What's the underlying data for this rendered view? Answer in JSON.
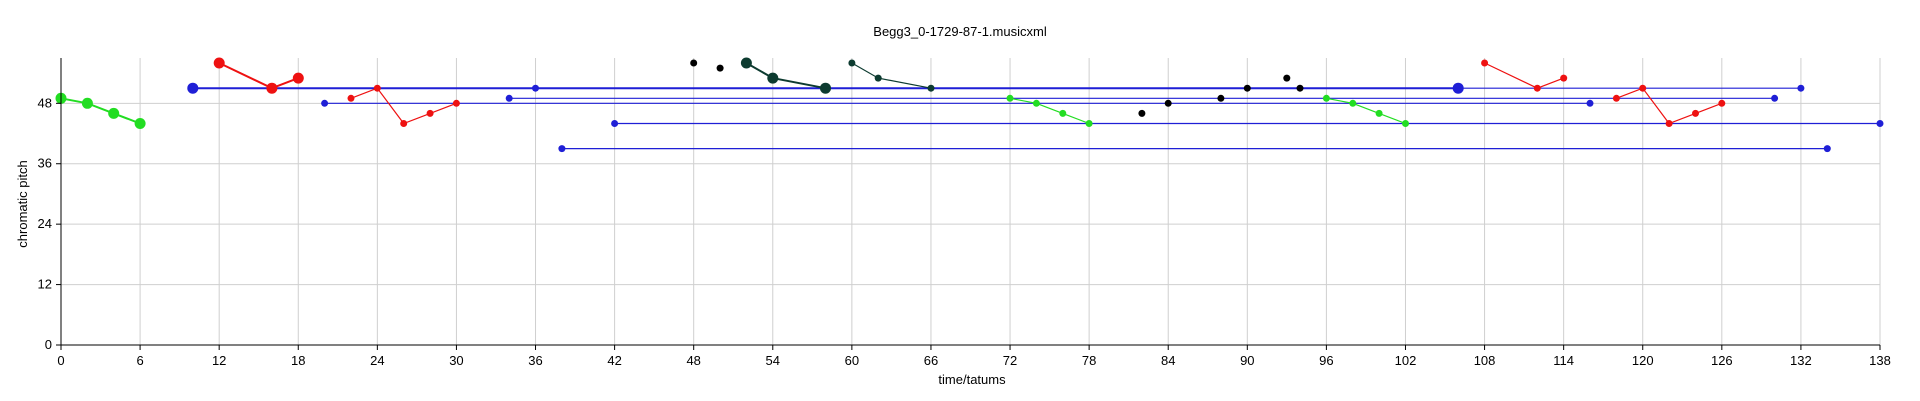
{
  "chart_data": {
    "type": "scatter",
    "title": "Begg3_0-1729-87-1.musicxml",
    "xlabel": "time/tatums",
    "ylabel": "chromatic pitch",
    "xlim": [
      0,
      138
    ],
    "ylim": [
      0,
      57
    ],
    "xticks": [
      0,
      6,
      12,
      18,
      24,
      30,
      36,
      42,
      48,
      54,
      60,
      66,
      72,
      78,
      84,
      90,
      96,
      102,
      108,
      114,
      120,
      126,
      132,
      138
    ],
    "yticks": [
      0,
      12,
      24,
      36,
      48
    ],
    "grid": true,
    "colors": {
      "blue": "#1f1fd6",
      "red": "#ee1111",
      "green": "#22dd22",
      "dark": "#0d3b30",
      "black": "#000000",
      "grid": "#cfcfcf"
    },
    "series": [
      {
        "color": "blue",
        "kind": "sustain",
        "size": "large",
        "points": [
          [
            10,
            51
          ],
          [
            106,
            51
          ]
        ]
      },
      {
        "color": "blue",
        "kind": "sustain",
        "size": "small",
        "points": [
          [
            20,
            48
          ],
          [
            116,
            48
          ]
        ]
      },
      {
        "color": "blue",
        "kind": "sustain",
        "size": "small",
        "points": [
          [
            34,
            49
          ],
          [
            130,
            49
          ]
        ]
      },
      {
        "color": "blue",
        "kind": "sustain",
        "size": "small",
        "points": [
          [
            36,
            51
          ],
          [
            132,
            51
          ]
        ]
      },
      {
        "color": "blue",
        "kind": "sustain",
        "size": "small",
        "points": [
          [
            38,
            39
          ],
          [
            134,
            39
          ]
        ]
      },
      {
        "color": "blue",
        "kind": "sustain",
        "size": "small",
        "points": [
          [
            42,
            44
          ],
          [
            138,
            44
          ]
        ]
      },
      {
        "color": "green",
        "kind": "line",
        "size": "large",
        "points": [
          [
            0,
            49
          ],
          [
            2,
            48
          ],
          [
            4,
            46
          ],
          [
            6,
            44
          ]
        ]
      },
      {
        "color": "green",
        "kind": "line",
        "size": "small",
        "points": [
          [
            72,
            49
          ],
          [
            74,
            48
          ],
          [
            76,
            46
          ],
          [
            78,
            44
          ]
        ]
      },
      {
        "color": "green",
        "kind": "line",
        "size": "small",
        "points": [
          [
            96,
            49
          ],
          [
            98,
            48
          ],
          [
            100,
            46
          ],
          [
            102,
            44
          ]
        ]
      },
      {
        "color": "red",
        "kind": "line",
        "size": "large",
        "points": [
          [
            12,
            56
          ],
          [
            16,
            51
          ],
          [
            18,
            53
          ]
        ]
      },
      {
        "color": "red",
        "kind": "line",
        "size": "small",
        "points": [
          [
            22,
            49
          ],
          [
            24,
            51
          ],
          [
            26,
            44
          ],
          [
            28,
            46
          ],
          [
            30,
            48
          ]
        ]
      },
      {
        "color": "red",
        "kind": "line",
        "size": "small",
        "points": [
          [
            108,
            56
          ],
          [
            112,
            51
          ],
          [
            114,
            53
          ]
        ]
      },
      {
        "color": "red",
        "kind": "line",
        "size": "small",
        "points": [
          [
            118,
            49
          ],
          [
            120,
            51
          ],
          [
            122,
            44
          ],
          [
            124,
            46
          ],
          [
            126,
            48
          ]
        ]
      },
      {
        "color": "dark",
        "kind": "line",
        "size": "large",
        "points": [
          [
            52,
            56
          ],
          [
            54,
            53
          ],
          [
            58,
            51
          ]
        ]
      },
      {
        "color": "dark",
        "kind": "line",
        "size": "small",
        "points": [
          [
            60,
            56
          ],
          [
            62,
            53
          ],
          [
            66,
            51
          ]
        ]
      },
      {
        "color": "black",
        "kind": "points",
        "size": "small",
        "points": [
          [
            48,
            56
          ],
          [
            50,
            55
          ],
          [
            82,
            46
          ],
          [
            84,
            48
          ],
          [
            88,
            49
          ],
          [
            90,
            51
          ],
          [
            93,
            53
          ],
          [
            94,
            51
          ]
        ]
      }
    ]
  }
}
